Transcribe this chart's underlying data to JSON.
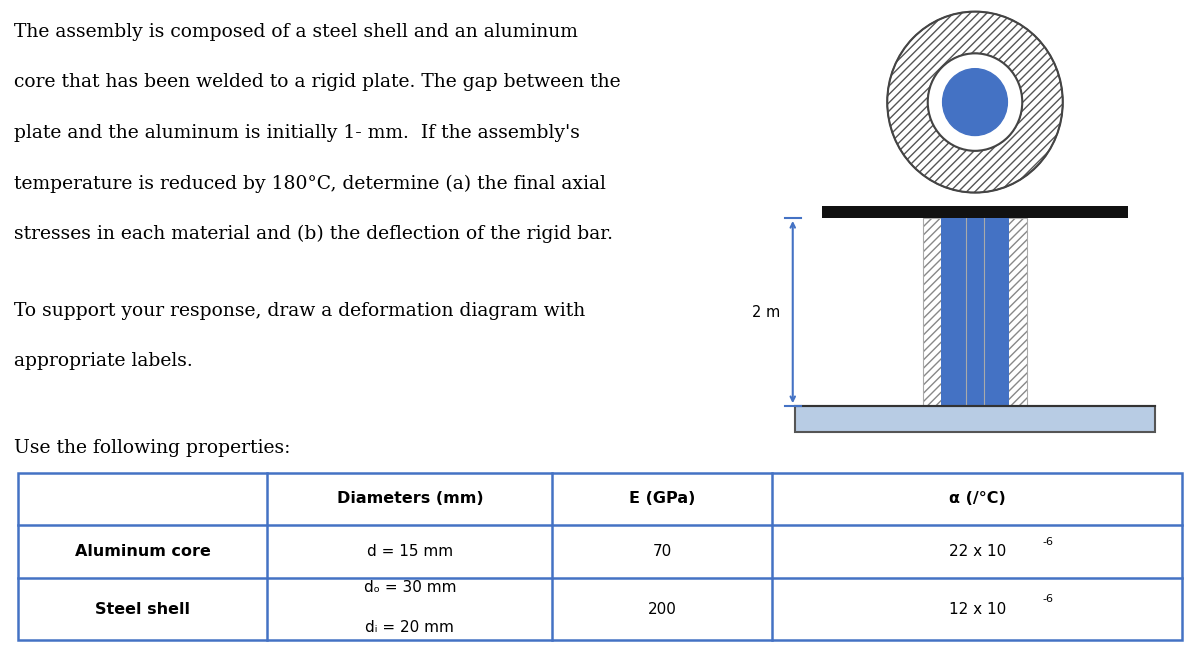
{
  "bg_color": "#ffffff",
  "diagram_bg": "#e0e0e0",
  "para1_lines": [
    "The assembly is composed of a steel shell and an aluminum",
    "core that has been welded to a rigid plate. The gap between the",
    "plate and the aluminum is initially 1- mm.  If the assembly's",
    "temperature is reduced by 180°C, determine (a) the final axial",
    "stresses in each material and (b) the deflection of the rigid bar."
  ],
  "para2_lines": [
    "To support your response, draw a deformation diagram with",
    "appropriate labels."
  ],
  "para3": "Use the following properties:",
  "table_headers": [
    "",
    "Diameters (mm)",
    "E (GPa)",
    "α (/°C)"
  ],
  "row1_label": "Aluminum core",
  "row1_diam": "d = 15 mm",
  "row1_E": "70",
  "row1_alpha": "22 x 10-6",
  "row2_label": "Steel shell",
  "row2_diam_top": "do = 30 mm",
  "row2_diam_bot": "di = 20 mm",
  "row2_E": "200",
  "row2_alpha": "12 x 10-6",
  "dim_label": "2 m",
  "aluminum_color": "#4472C4",
  "plate_color": "#111111",
  "base_color": "#b8cce4",
  "arrow_color": "#4472C4",
  "table_border_color": "#4472C4",
  "hatch_color": "#888888"
}
